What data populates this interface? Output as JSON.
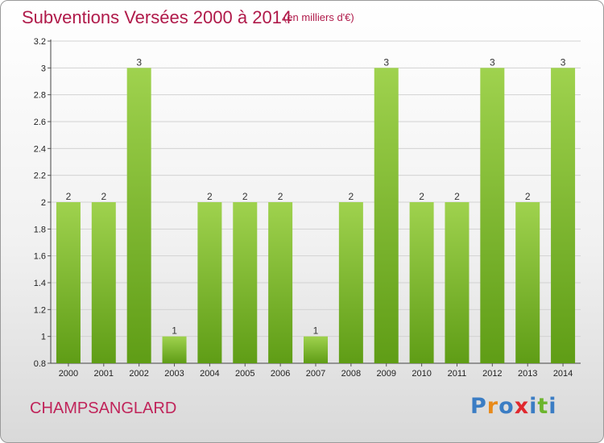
{
  "header": {
    "title": "Subventions Versées 2000 à 2014",
    "unit_note": "(en milliers d'€)"
  },
  "footer": {
    "place_name": "CHAMPSANGLARD",
    "logo_text": [
      "P",
      "r",
      "o",
      "x",
      "i",
      "t",
      "i"
    ]
  },
  "colors": {
    "bar_light": "#9fd24e",
    "bar_dark": "#5f9d16",
    "title": "#b01a4a",
    "logo": [
      "#3b7dc4",
      "#e88a1a",
      "#3b7dc4",
      "#e0282e",
      "#3b7dc4",
      "#6cb52d",
      "#3b7dc4"
    ]
  },
  "chart_data": {
    "type": "bar",
    "title": "Subventions Versées 2000 à 2014",
    "subtitle": "(en milliers d'€)",
    "categories": [
      "2000",
      "2001",
      "2002",
      "2003",
      "2004",
      "2005",
      "2006",
      "2007",
      "2008",
      "2009",
      "2010",
      "2011",
      "2012",
      "2013",
      "2014"
    ],
    "values": [
      2,
      2,
      3,
      1,
      2,
      2,
      2,
      1,
      2,
      3,
      2,
      2,
      3,
      2,
      3
    ],
    "value_labels": [
      "2",
      "2",
      "3",
      "1",
      "2",
      "2",
      "2",
      "1",
      "2",
      "3",
      "2",
      "2",
      "3",
      "2",
      "3"
    ],
    "ylim": [
      0.8,
      3.2
    ],
    "yticks": [
      0.8,
      1,
      1.2,
      1.4,
      1.6,
      1.8,
      2,
      2.2,
      2.4,
      2.6,
      2.8,
      3,
      3.2
    ],
    "ytick_labels": [
      "0.8",
      "1",
      "1.2",
      "1.4",
      "1.6",
      "1.8",
      "2",
      "2.2",
      "2.4",
      "2.6",
      "2.8",
      "3",
      "3.2"
    ],
    "grid": true,
    "legend": "none"
  }
}
